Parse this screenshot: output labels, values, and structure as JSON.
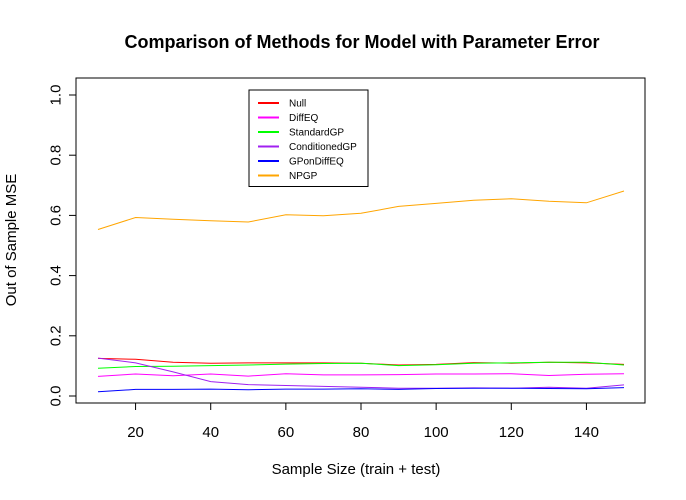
{
  "chart_data": {
    "type": "line",
    "title": "Comparison of Methods for Model with Parameter Error",
    "xlabel": "Sample Size (train + test)",
    "ylabel": "Out of Sample MSE",
    "xlim": [
      10,
      150
    ],
    "ylim": [
      0,
      1.0
    ],
    "x_ticks": [
      20,
      40,
      60,
      80,
      100,
      120,
      140
    ],
    "x_tick_labels": [
      "20",
      "40",
      "60",
      "80",
      "100",
      "120",
      "140"
    ],
    "y_ticks": [
      0.0,
      0.2,
      0.4,
      0.6,
      0.8,
      1.0
    ],
    "y_tick_labels": [
      "0.0",
      "0.2",
      "0.4",
      "0.6",
      "0.8",
      "1.0"
    ],
    "legend_position": "top-left",
    "x": [
      10,
      20,
      30,
      40,
      50,
      60,
      70,
      80,
      90,
      100,
      110,
      120,
      130,
      140,
      150
    ],
    "series": [
      {
        "name": "Null",
        "color": "#ff0000",
        "values": [
          0.125,
          0.122,
          0.112,
          0.109,
          0.11,
          0.11,
          0.11,
          0.109,
          0.103,
          0.105,
          0.111,
          0.109,
          0.112,
          0.11,
          0.105
        ]
      },
      {
        "name": "DiffEQ",
        "color": "#ff00ff",
        "values": [
          0.065,
          0.073,
          0.067,
          0.073,
          0.066,
          0.074,
          0.07,
          0.07,
          0.071,
          0.073,
          0.073,
          0.074,
          0.068,
          0.072,
          0.074
        ]
      },
      {
        "name": "StandardGP",
        "color": "#00ff00",
        "values": [
          0.092,
          0.098,
          0.099,
          0.101,
          0.103,
          0.106,
          0.108,
          0.109,
          0.101,
          0.104,
          0.109,
          0.11,
          0.112,
          0.112,
          0.103
        ]
      },
      {
        "name": "ConditionedGP",
        "color": "#a020f0",
        "values": [
          0.126,
          0.11,
          0.08,
          0.048,
          0.038,
          0.035,
          0.032,
          0.029,
          0.026,
          0.026,
          0.027,
          0.026,
          0.029,
          0.026,
          0.037
        ]
      },
      {
        "name": "GPonDiffEQ",
        "color": "#0000ff",
        "values": [
          0.014,
          0.022,
          0.022,
          0.023,
          0.021,
          0.023,
          0.023,
          0.024,
          0.022,
          0.025,
          0.026,
          0.026,
          0.025,
          0.024,
          0.028
        ]
      },
      {
        "name": "NPGP",
        "color": "#ffa500",
        "values": [
          0.553,
          0.593,
          0.587,
          0.582,
          0.578,
          0.602,
          0.599,
          0.607,
          0.63,
          0.64,
          0.65,
          0.655,
          0.647,
          0.642,
          0.681
        ]
      }
    ]
  }
}
